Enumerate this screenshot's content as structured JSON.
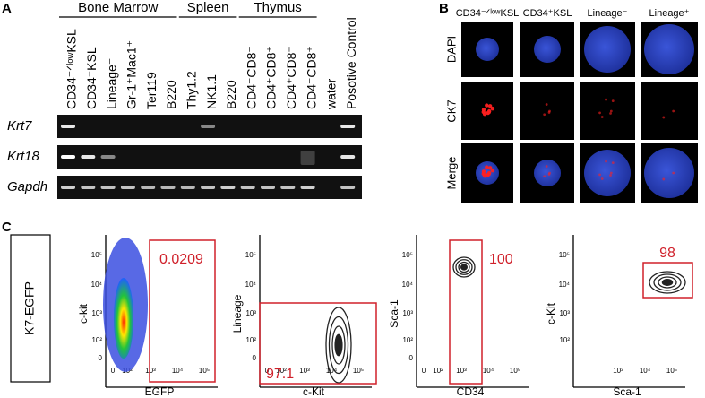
{
  "panel_a": {
    "label": "A",
    "groups": [
      "Bone Marrow",
      "Spleen",
      "Thymus"
    ],
    "lanes": [
      "CD34⁻ᐟˡᵒʷKSL",
      "CD34⁺KSL",
      "Lineage⁻",
      "Gr-1⁺Mac1⁺",
      "Ter119",
      "B220",
      "Thy1.2",
      "NK1.1",
      "B220",
      "CD4⁻CD8⁻",
      "CD4⁺CD8⁺",
      "CD4⁺CD8⁻",
      "CD4⁻CD8⁺",
      "water",
      "Posotive Control"
    ],
    "genes": [
      "Krt7",
      "Krt18",
      "Gapdh"
    ]
  },
  "panel_b": {
    "label": "B",
    "columns": [
      "CD34⁻ᐟˡᵒʷKSL",
      "CD34⁺KSL",
      "Lineage⁻",
      "Lineage⁺"
    ],
    "rows": [
      "DAPI",
      "CK7",
      "Merge"
    ]
  },
  "panel_c": {
    "label": "C",
    "sample": "K7-EGFP",
    "plots": [
      {
        "x_label": "EGFP",
        "y_label": "c-kit",
        "xticks": [
          "0",
          "10²",
          "10³",
          "10⁴",
          "10⁵"
        ],
        "yticks": [
          "10⁵",
          "10⁴",
          "10³",
          "10²",
          "0"
        ],
        "gate_value": 0.0209
      },
      {
        "x_label": "c-Kit",
        "y_label": "Lineage",
        "xticks": [
          "0",
          "10²",
          "10³",
          "10⁴",
          "10⁵"
        ],
        "yticks": [
          "10⁵",
          "10⁴",
          "10³",
          "10²",
          "0"
        ],
        "gate_value": 97.1
      },
      {
        "x_label": "CD34",
        "y_label": "Sca-1",
        "xticks": [
          "0",
          "10²",
          "10³",
          "10⁴",
          "10⁵"
        ],
        "yticks": [
          "10⁵",
          "10⁴",
          "10³",
          "10²",
          "0"
        ],
        "gate_value": 100
      },
      {
        "x_label": "Sca-1",
        "y_label": "c-Kit",
        "xticks": [
          "10³",
          "10⁴",
          "10⁵"
        ],
        "yticks": [
          "10⁵",
          "10⁴",
          "10³",
          "10²"
        ],
        "gate_value": 98
      }
    ]
  }
}
